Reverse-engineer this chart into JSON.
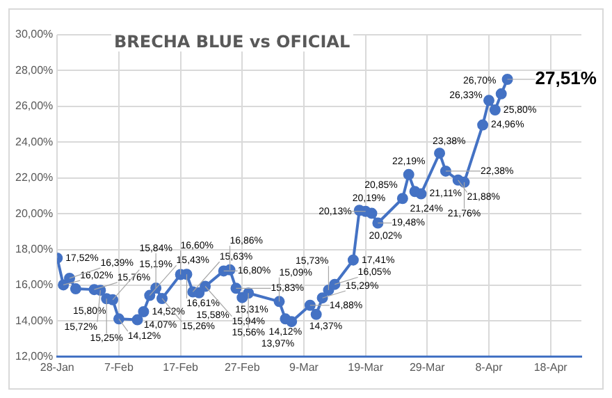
{
  "chart_data": {
    "type": "line",
    "title": "BRECHA BLUE vs OFICIAL",
    "x": [
      "--01-28",
      "--01-29",
      "--01-30",
      "--01-31",
      "--02-03",
      "--02-04",
      "--02-05",
      "--02-06",
      "--02-07",
      "--02-10",
      "--02-11",
      "--02-12",
      "--02-13",
      "--02-14",
      "--02-17",
      "--02-18",
      "--02-19",
      "--02-20",
      "--02-21",
      "--02-24",
      "--02-25",
      "--02-26",
      "--02-27",
      "--02-28",
      "--03-05",
      "--03-06",
      "--03-07",
      "--03-10",
      "--03-11",
      "--03-12",
      "--03-13",
      "--03-14",
      "--03-17",
      "--03-18",
      "--03-19",
      "--03-20",
      "--03-21",
      "--03-25",
      "--03-26",
      "--03-27",
      "--03-28",
      "--03-31",
      "--04-01",
      "--04-03",
      "--04-04",
      "--04-07",
      "--04-08",
      "--04-09",
      "--04-10",
      "--04-11"
    ],
    "series": [
      {
        "color": "#4472c4",
        "values": [
          17.52,
          16.02,
          16.39,
          15.8,
          15.76,
          15.72,
          15.25,
          15.19,
          14.12,
          14.07,
          14.52,
          15.43,
          15.84,
          15.26,
          16.6,
          16.61,
          15.63,
          15.58,
          15.94,
          16.8,
          16.86,
          15.83,
          15.31,
          15.56,
          15.09,
          14.12,
          13.97,
          14.88,
          14.37,
          15.29,
          15.73,
          16.05,
          17.41,
          20.19,
          20.13,
          20.02,
          19.48,
          20.85,
          22.19,
          21.24,
          21.11,
          23.38,
          22.38,
          21.88,
          21.76,
          24.96,
          26.33,
          25.8,
          26.7,
          27.51
        ],
        "value_labels": [
          "17,52%",
          "16,02%",
          "16,39%",
          "15,80%",
          "15,76%",
          "15,72%",
          "15,25%",
          "15,19%",
          "14,12%",
          "14,07%",
          "14,52%",
          "15,43%",
          "15,84%",
          "15,26%",
          "16,60%",
          "16,61%",
          "15,63%",
          "15,58%",
          "15,94%",
          "16,80%",
          "16,86%",
          "15,83%",
          "15,31%",
          "15,56%",
          "15,09%",
          "14,12%",
          "13,97%",
          "14,88%",
          "14,37%",
          "15,29%",
          "15,73%",
          "16,05%",
          "17,41%",
          "20,19%",
          "20,13%",
          "20,02%",
          "19,48%",
          "20,85%",
          "22,19%",
          "21,24%",
          "21,11%",
          "23,38%",
          "22,38%",
          "21,88%",
          "21,76%",
          "24,96%",
          "26,33%",
          "25,80%",
          "26,70%",
          "27,51%"
        ]
      }
    ],
    "xlim": [
      "--01-28",
      "--04-23"
    ],
    "xticks": [
      {
        "value": "--01-28",
        "label": "28-Jan"
      },
      {
        "value": "--02-07",
        "label": "7-Feb"
      },
      {
        "value": "--02-17",
        "label": "17-Feb"
      },
      {
        "value": "--02-27",
        "label": "27-Feb"
      },
      {
        "value": "--03-09",
        "label": "9-Mar"
      },
      {
        "value": "--03-19",
        "label": "19-Mar"
      },
      {
        "value": "--03-29",
        "label": "29-Mar"
      },
      {
        "value": "--04-08",
        "label": "8-Apr"
      },
      {
        "value": "--04-18",
        "label": "18-Apr"
      }
    ],
    "ylim": [
      12,
      30
    ],
    "yticks": [
      {
        "value": 12,
        "label": "12,00%"
      },
      {
        "value": 14,
        "label": "14,00%"
      },
      {
        "value": 16,
        "label": "16,00%"
      },
      {
        "value": 18,
        "label": "18,00%"
      },
      {
        "value": 20,
        "label": "20,00%"
      },
      {
        "value": 22,
        "label": "22,00%"
      },
      {
        "value": 24,
        "label": "24,00%"
      },
      {
        "value": 26,
        "label": "26,00%"
      },
      {
        "value": 28,
        "label": "28,00%"
      },
      {
        "value": 30,
        "label": "30,00%"
      }
    ],
    "grid": true,
    "marker": "circle",
    "line_style": "solid",
    "legend": false
  }
}
